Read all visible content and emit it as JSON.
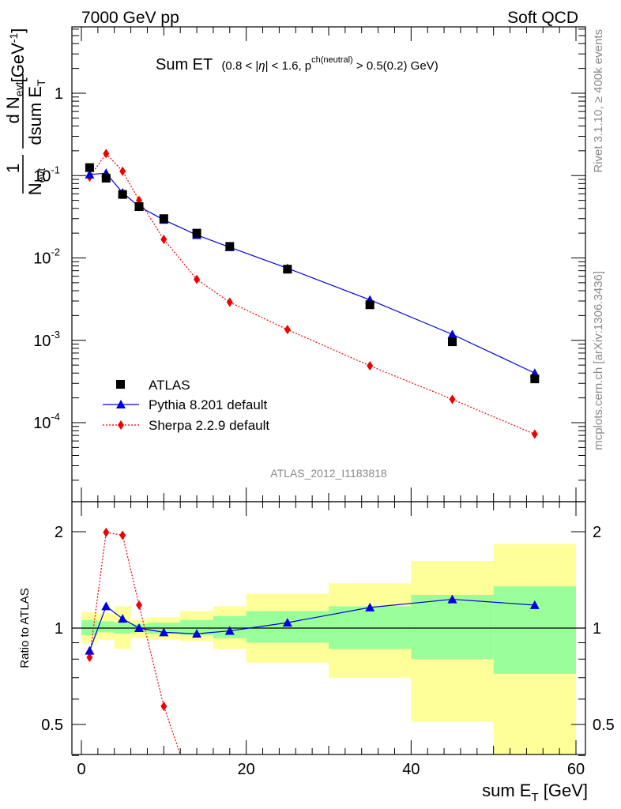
{
  "header": {
    "left": "7000 GeV pp",
    "right": "Soft QCD"
  },
  "title": {
    "main": "Sum ET",
    "cuts_a": "(0.8 < |",
    "cuts_eta": "η",
    "cuts_b": "| < 1.6, p",
    "cuts_sup": "ch(neutral)",
    "cuts_c": " > 0.5(0.2) GeV)"
  },
  "side_labels": {
    "rivet": "Rivet 3.1.10, ≥ 400k events",
    "mcplots": "mcplots.cern.ch [arXiv:1306.3436]"
  },
  "analysis_id": "ATLAS_2012_I1183818",
  "ylabel_main": {
    "one": "1",
    "N": "N",
    "N_sub": "evt",
    "dN": "d N",
    "dN_sub": "evt",
    "dsum": "dsum E",
    "dsum_sub": "T",
    "unit": "[GeV",
    "unit_sup": "-1",
    "unit_close": "]"
  },
  "ylabel_ratio": "Ratio to ATLAS",
  "xlabel": {
    "text": "sum E",
    "sub": "T",
    "unit": " [GeV]"
  },
  "legend": [
    {
      "label": "ATLAS"
    },
    {
      "label": "Pythia 8.201 default"
    },
    {
      "label": "Sherpa 2.2.9 default"
    }
  ],
  "colors": {
    "data": "#000000",
    "pythia": "#0000dd",
    "sherpa": "#ee0000",
    "band_inner": "#99ff99",
    "band_outer": "#ffff99"
  },
  "chart_data": {
    "type": "line",
    "xlim": [
      -1.5,
      61.5
    ],
    "ylim_main": [
      9e-06,
      6
    ],
    "ylog": true,
    "ylim_ratio": [
      0.35,
      2.35
    ],
    "x_ticks": [
      "0",
      "20",
      "40",
      "60"
    ],
    "y_main_ticks": [
      {
        "base": "10",
        "exp": "-4",
        "value": 0.0001
      },
      {
        "base": "10",
        "exp": "-3",
        "value": 0.001
      },
      {
        "base": "10",
        "exp": "-2",
        "value": 0.01
      },
      {
        "base": "10",
        "exp": "-1",
        "value": 0.1
      },
      {
        "base": "1",
        "exp": "",
        "value": 1
      }
    ],
    "y_ratio_ticks": [
      "0.5",
      "1",
      "2"
    ],
    "bins": [
      [
        0,
        2
      ],
      [
        2,
        4
      ],
      [
        4,
        6
      ],
      [
        6,
        8
      ],
      [
        8,
        12
      ],
      [
        12,
        16
      ],
      [
        16,
        20
      ],
      [
        20,
        30
      ],
      [
        30,
        40
      ],
      [
        40,
        50
      ],
      [
        50,
        60
      ]
    ],
    "x": [
      1,
      3,
      5,
      7,
      10,
      14,
      18,
      25,
      35,
      45,
      55
    ],
    "series": [
      {
        "name": "ATLAS",
        "values": [
          0.125,
          0.093,
          0.059,
          0.042,
          0.03,
          0.02,
          0.0138,
          0.0073,
          0.0027,
          0.00096,
          0.00034
        ]
      },
      {
        "name": "Pythia 8.201 default",
        "values": [
          0.103,
          0.107,
          0.062,
          0.042,
          0.029,
          0.019,
          0.0135,
          0.0075,
          0.0031,
          0.00118,
          0.0004
        ]
      },
      {
        "name": "Sherpa 2.2.9 default",
        "values": [
          0.096,
          0.185,
          0.113,
          0.05,
          0.0168,
          0.0055,
          0.0029,
          0.00135,
          0.00049,
          0.000192,
          7.25e-05
        ]
      }
    ],
    "ratio": {
      "pythia": [
        0.85,
        1.17,
        1.07,
        1.0,
        0.97,
        0.96,
        0.98,
        1.04,
        1.16,
        1.23,
        1.18
      ],
      "sherpa_x": [
        1,
        3,
        5,
        7,
        10,
        12
      ],
      "sherpa": [
        0.81,
        1.99,
        1.95,
        1.18,
        0.57,
        0.35
      ]
    },
    "bands": {
      "inner": [
        [
          0.95,
          1.06
        ],
        [
          0.97,
          1.05
        ],
        [
          0.96,
          1.04
        ],
        [
          0.97,
          1.03
        ],
        [
          0.96,
          1.04
        ],
        [
          0.95,
          1.06
        ],
        [
          0.93,
          1.09
        ],
        [
          0.9,
          1.13
        ],
        [
          0.86,
          1.17
        ],
        [
          0.8,
          1.27
        ],
        [
          0.72,
          1.35
        ]
      ],
      "outer": [
        [
          0.9,
          1.12
        ],
        [
          0.92,
          1.11
        ],
        [
          0.86,
          1.17
        ],
        [
          0.93,
          1.06
        ],
        [
          0.92,
          1.08
        ],
        [
          0.91,
          1.13
        ],
        [
          0.86,
          1.17
        ],
        [
          0.78,
          1.28
        ],
        [
          0.7,
          1.38
        ],
        [
          0.51,
          1.62
        ],
        [
          0.3,
          1.83
        ]
      ]
    }
  }
}
